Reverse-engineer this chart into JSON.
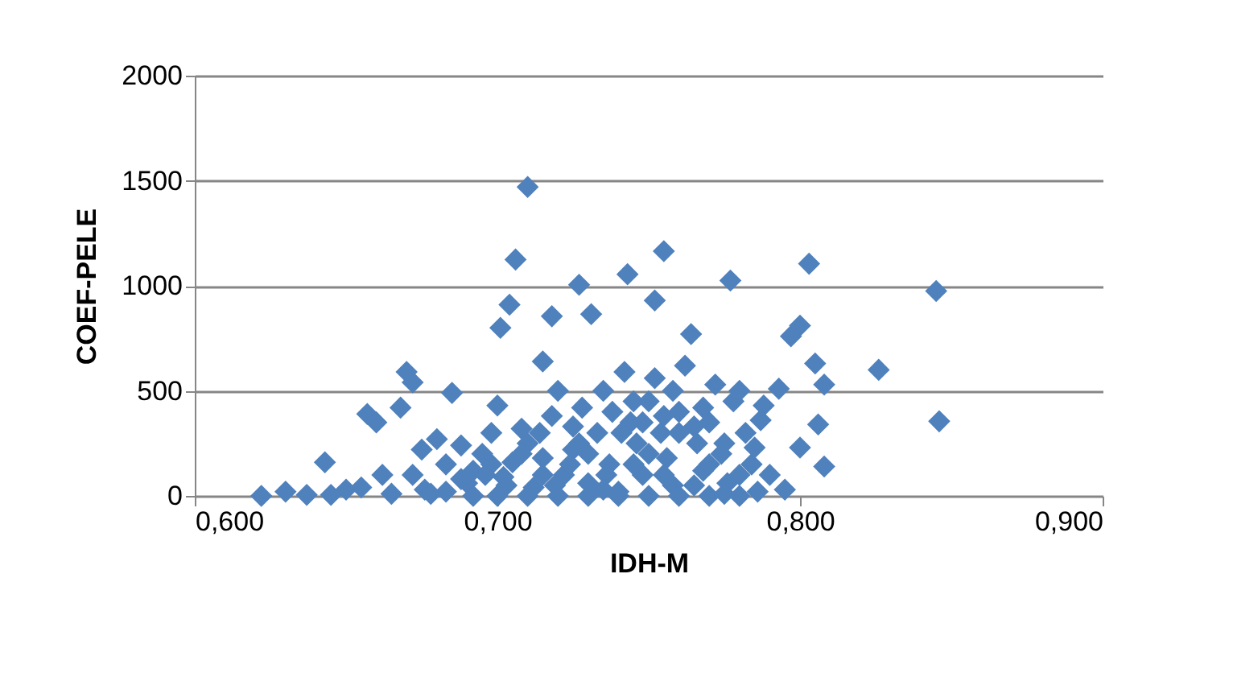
{
  "chart_data": {
    "type": "scatter",
    "xlabel": "IDH-M",
    "ylabel": "COEF-PELE",
    "xlim": [
      0.6,
      0.9
    ],
    "xticks": [
      {
        "value": 0.6,
        "label": "0,600"
      },
      {
        "value": 0.7,
        "label": "0,700"
      },
      {
        "value": 0.8,
        "label": "0,800"
      },
      {
        "value": 0.9,
        "label": "0,900"
      }
    ],
    "ylim": [
      0,
      2000
    ],
    "yticks": [
      0,
      500,
      1000,
      1500,
      2000
    ],
    "grid": "y",
    "marker": "diamond",
    "series": [
      {
        "color": "#4f81bd",
        "x": [
          0.71,
          0.706,
          0.704,
          0.701,
          0.715,
          0.718,
          0.727,
          0.731,
          0.743,
          0.752,
          0.755,
          0.777,
          0.803,
          0.845,
          0.846,
          0.826,
          0.8,
          0.797,
          0.808,
          0.805,
          0.806,
          0.808,
          0.795,
          0.793,
          0.787,
          0.8,
          0.622,
          0.63,
          0.637,
          0.643,
          0.645,
          0.65,
          0.655,
          0.657,
          0.66,
          0.662,
          0.665,
          0.668,
          0.67,
          0.672,
          0.675,
          0.676,
          0.68,
          0.683,
          0.685,
          0.688,
          0.69,
          0.692,
          0.695,
          0.698,
          0.7,
          0.702,
          0.705,
          0.708,
          0.71,
          0.712,
          0.715,
          0.718,
          0.72,
          0.722,
          0.725,
          0.728,
          0.73,
          0.733,
          0.735,
          0.737,
          0.74,
          0.742,
          0.744,
          0.746,
          0.748,
          0.75,
          0.752,
          0.754,
          0.756,
          0.758,
          0.76,
          0.762,
          0.764,
          0.766,
          0.768,
          0.77,
          0.772,
          0.774,
          0.776,
          0.778,
          0.78,
          0.782,
          0.784,
          0.786,
          0.79,
          0.788,
          0.698,
          0.703,
          0.708,
          0.714,
          0.719,
          0.724,
          0.73,
          0.736,
          0.741,
          0.745,
          0.75,
          0.755,
          0.76,
          0.765,
          0.77,
          0.775,
          0.78,
          0.727,
          0.738,
          0.748,
          0.758,
          0.768,
          0.692,
          0.7,
          0.71,
          0.72,
          0.73,
          0.74,
          0.75,
          0.76,
          0.77,
          0.78,
          0.715,
          0.725,
          0.735,
          0.745,
          0.755,
          0.765,
          0.775,
          0.785,
          0.683,
          0.688,
          0.696,
          0.672,
          0.678
        ],
        "values": [
          1470,
          1125,
          910,
          800,
          640,
          855,
          1005,
          865,
          1055,
          930,
          1165,
          1025,
          1105,
          975,
          355,
          600,
          810,
          760,
          530,
          630,
          340,
          140,
          30,
          510,
          360,
          230,
          0,
          20,
          5,
          160,
          5,
          30,
          40,
          390,
          350,
          100,
          10,
          420,
          590,
          540,
          220,
          30,
          270,
          150,
          490,
          240,
          60,
          120,
          200,
          300,
          430,
          90,
          160,
          320,
          250,
          40,
          180,
          380,
          500,
          100,
          220,
          420,
          60,
          300,
          500,
          150,
          20,
          590,
          350,
          250,
          100,
          450,
          560,
          300,
          180,
          50,
          400,
          620,
          770,
          250,
          120,
          350,
          530,
          200,
          60,
          450,
          500,
          300,
          150,
          20,
          100,
          430,
          150,
          50,
          200,
          300,
          50,
          150,
          200,
          100,
          300,
          450,
          200,
          100,
          300,
          50,
          150,
          250,
          100,
          250,
          400,
          350,
          500,
          420,
          0,
          0,
          0,
          0,
          0,
          0,
          0,
          0,
          0,
          0,
          100,
          330,
          30,
          150,
          380,
          330,
          10,
          230,
          20,
          80,
          100,
          100,
          10
        ]
      }
    ]
  }
}
